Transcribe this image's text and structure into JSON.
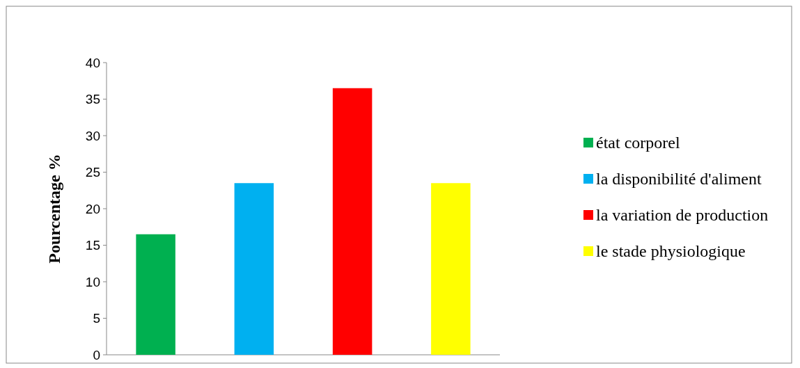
{
  "chart_data": {
    "type": "bar",
    "ylabel": "Pourcentage %",
    "categories": [
      null,
      null,
      null,
      null
    ],
    "series": [
      {
        "name": "état corporel",
        "color": "#00b050",
        "values": [
          16.5,
          null,
          null,
          null
        ]
      },
      {
        "name": "la disponibilité d'aliment",
        "color": "#00b0f0",
        "values": [
          null,
          23.5,
          null,
          null
        ]
      },
      {
        "name": "la variation de production",
        "color": "#ff0000",
        "values": [
          null,
          null,
          36.5,
          null
        ]
      },
      {
        "name": "le stade physiologique",
        "color": "#ffff00",
        "values": [
          null,
          null,
          null,
          23.5
        ]
      }
    ],
    "ylim": [
      0,
      40
    ],
    "yticks": [
      0,
      5,
      10,
      15,
      20,
      25,
      30,
      35,
      40
    ],
    "grid": false,
    "legend": "right"
  }
}
